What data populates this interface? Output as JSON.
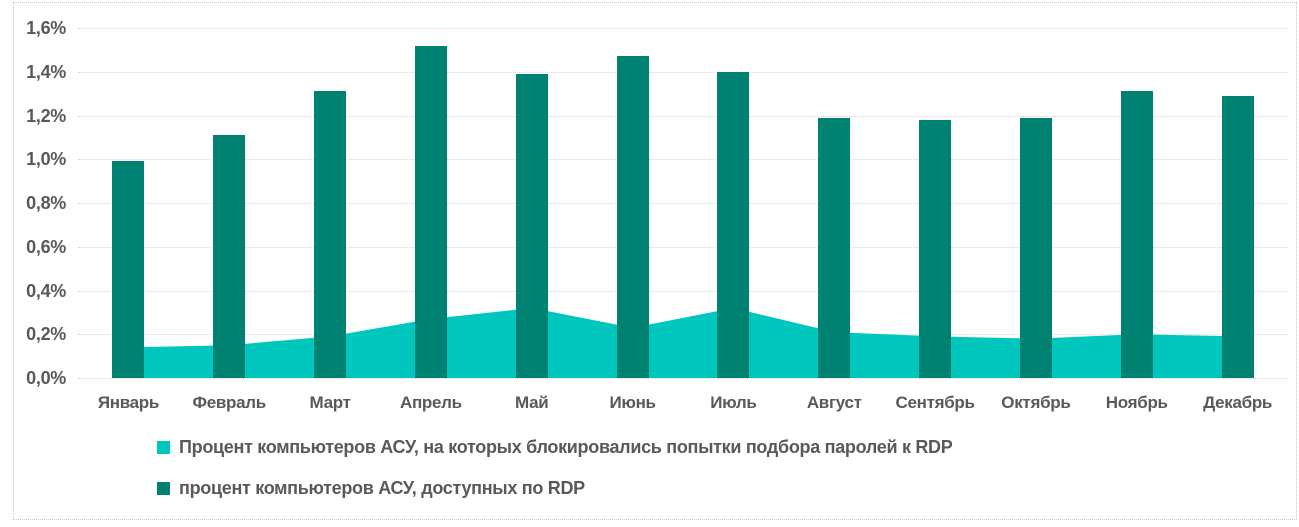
{
  "chart_data": {
    "type": "combo",
    "title": "",
    "categories": [
      "Январь",
      "Февраль",
      "Март",
      "Апрель",
      "Май",
      "Июнь",
      "Июль",
      "Август",
      "Сентябрь",
      "Октябрь",
      "Ноябрь",
      "Декабрь"
    ],
    "y_ticks": [
      "0,0%",
      "0,2%",
      "0,4%",
      "0,6%",
      "0,8%",
      "1,0%",
      "1,2%",
      "1,4%",
      "1,6%"
    ],
    "ylim": [
      0,
      1.6
    ],
    "grid": "horizontal-dotted",
    "legend_position": "bottom-left",
    "series": [
      {
        "name": "Процент компьютеров АСУ, на которых блокировались попытки подбора паролей к RDP",
        "type": "area",
        "color": "#00C7BE",
        "values": [
          0.14,
          0.15,
          0.19,
          0.27,
          0.32,
          0.23,
          0.32,
          0.21,
          0.19,
          0.18,
          0.2,
          0.19
        ]
      },
      {
        "name": "процент компьютеров АСУ, доступных по RDP",
        "type": "column",
        "color": "#008272",
        "values": [
          0.99,
          1.11,
          1.31,
          1.52,
          1.39,
          1.47,
          1.4,
          1.19,
          1.18,
          1.19,
          1.31,
          1.29
        ]
      }
    ]
  }
}
